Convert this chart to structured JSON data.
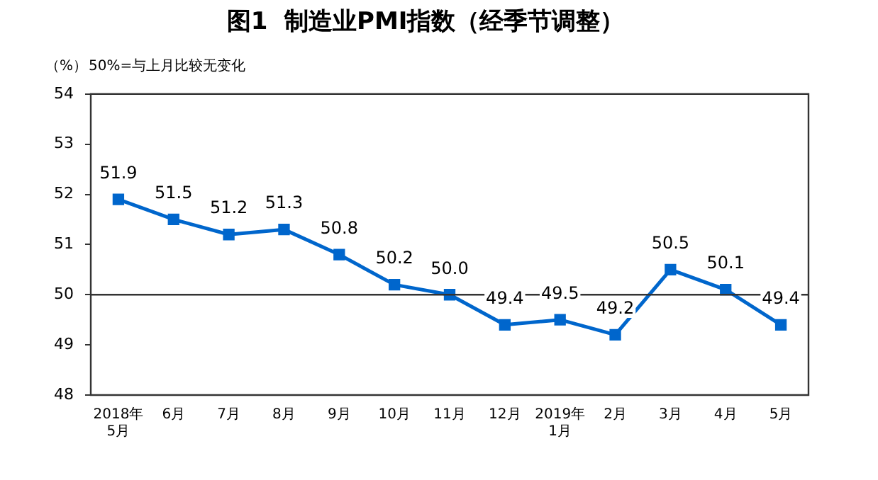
{
  "chart_data": {
    "type": "line",
    "title": "图1  制造业PMI指数（经季节调整）",
    "ylabel": "（%）",
    "annotations": [
      "50%=与上月比较无变化"
    ],
    "categories": [
      "2018年\n5月",
      "6月",
      "7月",
      "8月",
      "9月",
      "10月",
      "11月",
      "12月",
      "2019年\n1月",
      "2月",
      "3月",
      "4月",
      "5月"
    ],
    "series": [
      {
        "color": "#0066cc",
        "values": [
          51.9,
          51.5,
          51.2,
          51.3,
          50.8,
          50.2,
          50.0,
          49.4,
          49.5,
          49.2,
          50.5,
          50.1,
          49.4
        ],
        "value_labels": [
          "51.9",
          "51.5",
          "51.2",
          "51.3",
          "50.8",
          "50.2",
          "50.0",
          "49.4",
          "49.5",
          "49.2",
          "50.5",
          "50.1",
          "49.4"
        ]
      }
    ],
    "ylim": [
      48,
      54
    ],
    "yticks": [
      48,
      49,
      50,
      51,
      52,
      53,
      54
    ],
    "grid": false,
    "legend": false,
    "marker": "square",
    "line_style": "solid",
    "ref_lines": [
      {
        "axis": "y",
        "value": 50,
        "color": "#333333"
      }
    ]
  }
}
